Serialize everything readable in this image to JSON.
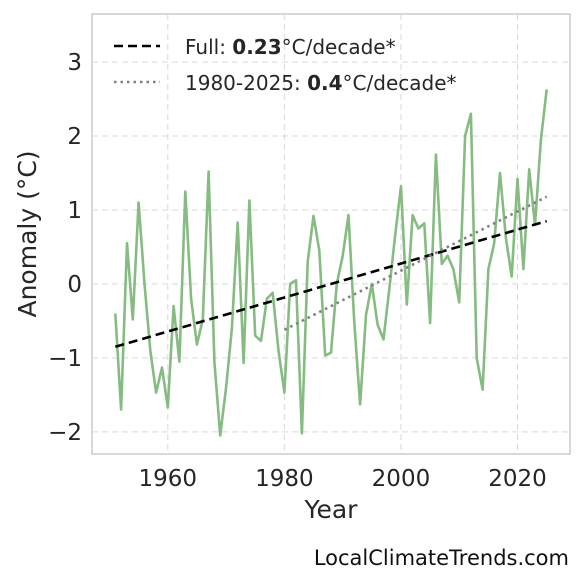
{
  "chart_data": {
    "type": "line",
    "xlabel": "Year",
    "ylabel": "Anomaly (°C)",
    "xlim": [
      1947,
      2029
    ],
    "ylim": [
      -2.3,
      3.65
    ],
    "xticks": [
      1960,
      1980,
      2000,
      2020
    ],
    "yticks": [
      -2,
      -1,
      0,
      1,
      2,
      3
    ],
    "ytick_labels": [
      "−2",
      "−1",
      "0",
      "1",
      "2",
      "3"
    ],
    "grid": true,
    "legend_position": "top-left",
    "series": [
      {
        "style": "solid",
        "color": "#86bb82",
        "x": [
          1951,
          1952,
          1953,
          1954,
          1955,
          1956,
          1957,
          1958,
          1959,
          1960,
          1961,
          1962,
          1963,
          1964,
          1965,
          1966,
          1967,
          1968,
          1969,
          1970,
          1971,
          1972,
          1973,
          1974,
          1975,
          1976,
          1977,
          1978,
          1979,
          1980,
          1981,
          1982,
          1983,
          1984,
          1985,
          1986,
          1987,
          1988,
          1989,
          1990,
          1991,
          1992,
          1993,
          1994,
          1995,
          1996,
          1997,
          1998,
          1999,
          2000,
          2001,
          2002,
          2003,
          2004,
          2005,
          2006,
          2007,
          2008,
          2009,
          2010,
          2011,
          2012,
          2013,
          2014,
          2015,
          2016,
          2017,
          2018,
          2019,
          2020,
          2021,
          2022,
          2023,
          2024,
          2025
        ],
        "y": [
          -0.4,
          -1.7,
          0.55,
          -0.48,
          1.1,
          0.0,
          -0.9,
          -1.47,
          -1.13,
          -1.67,
          -0.3,
          -1.05,
          1.25,
          -0.2,
          -0.82,
          -0.48,
          1.52,
          -1.05,
          -2.05,
          -1.4,
          -0.6,
          0.83,
          -1.07,
          1.13,
          -0.7,
          -0.77,
          -0.2,
          -0.12,
          -0.9,
          -1.47,
          0.0,
          0.05,
          -2.02,
          0.3,
          0.92,
          0.45,
          -0.97,
          -0.93,
          0.0,
          0.38,
          0.93,
          -0.52,
          -1.63,
          -0.42,
          0.0,
          -0.55,
          -0.75,
          -0.07,
          0.65,
          1.32,
          -0.28,
          0.93,
          0.75,
          0.82,
          -0.53,
          1.75,
          0.27,
          0.38,
          0.2,
          -0.25,
          2.0,
          2.3,
          -1.0,
          -1.43,
          0.2,
          0.55,
          1.5,
          0.62,
          0.1,
          1.42,
          0.2,
          1.55,
          0.8,
          1.95,
          2.63
        ]
      },
      {
        "name": "Full: 0.23°C/decade*",
        "style": "dashed",
        "color": "#000000",
        "x": [
          1951,
          2025
        ],
        "y": [
          -0.85,
          0.85
        ]
      },
      {
        "name": "1980-2025: 0.4°C/decade*",
        "style": "dotted",
        "color": "#808080",
        "x": [
          1980,
          2025
        ],
        "y": [
          -0.62,
          1.18
        ]
      }
    ],
    "legend": [
      {
        "prefix": "Full: ",
        "bold": "0.23",
        "suffix": "°C/decade*"
      },
      {
        "prefix": "1980-2025: ",
        "bold": "0.4",
        "suffix": "°C/decade*"
      }
    ]
  },
  "credit": "LocalClimateTrends.com"
}
